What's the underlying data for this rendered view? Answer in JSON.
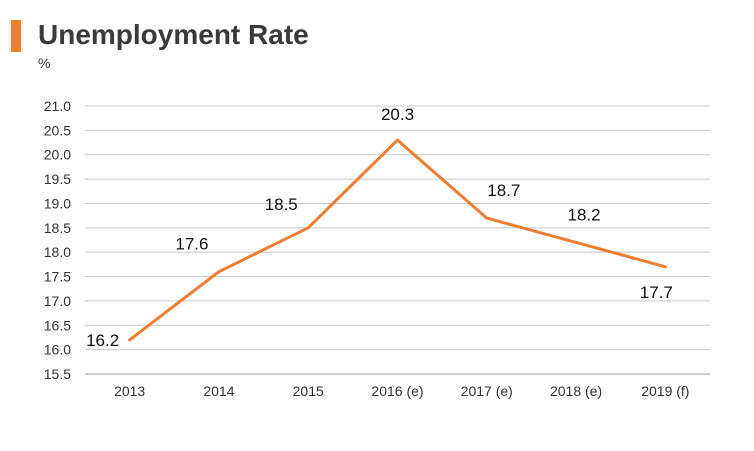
{
  "colors": {
    "accent": "#ED7D31",
    "line": "#ED7D31",
    "grid": "#C8C8C8",
    "axis": "#9E9E9E"
  },
  "chart_data": {
    "type": "line",
    "title": "Unemployment Rate",
    "ylabel": "%",
    "xlabel": "",
    "categories": [
      "2013",
      "2014",
      "2015",
      "2016 (e)",
      "2017 (e)",
      "2018 (e)",
      "2019 (f)"
    ],
    "series": [
      {
        "values": [
          16.2,
          17.6,
          18.5,
          20.3,
          18.7,
          18.2,
          17.7
        ]
      }
    ],
    "data_labels": [
      "16.2",
      "17.6",
      "18.5",
      "20.3",
      "18.7",
      "18.2",
      "17.7"
    ],
    "y_ticks": [
      "15.5",
      "16.0",
      "16.5",
      "17.0",
      "17.5",
      "18.0",
      "18.5",
      "19.0",
      "19.5",
      "20.0",
      "20.5",
      "21.0"
    ],
    "ylim": [
      15.5,
      21.0
    ],
    "grid": true,
    "legend": "none"
  }
}
